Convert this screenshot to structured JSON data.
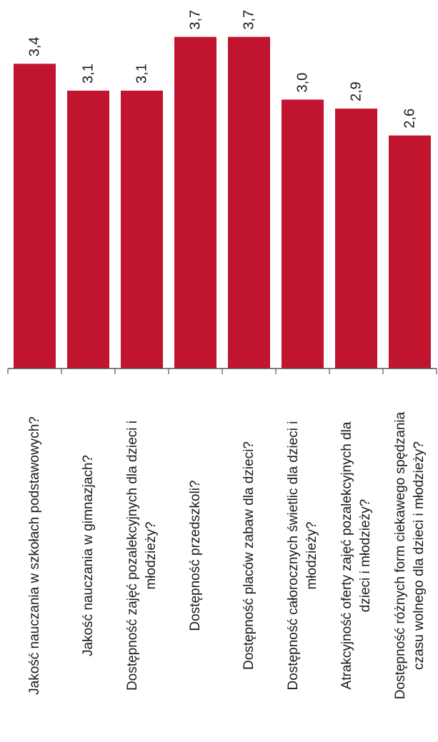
{
  "chart_data": {
    "type": "bar",
    "categories": [
      [
        "Jakość nauczania w szkołach podstawowych?"
      ],
      [
        "Jakość nauczania w gimnazjach?"
      ],
      [
        "Dostępność zajęć pozalekcyjnych dla dzieci i",
        "młodzieży?"
      ],
      [
        "Dostępność przedszkoli?"
      ],
      [
        "Dostępność placów zabaw dla dzieci?"
      ],
      [
        "Dostępność całorocznych świetlic dla dzieci i",
        "młodzieży?"
      ],
      [
        "Atrakcyjność oferty zajęć pozalekcyjnych dla",
        "dzieci i młodzieży?"
      ],
      [
        "Dostępność różnych form ciekawego spędzania",
        "czasu wolnego dla dzieci i młodzieży?"
      ]
    ],
    "values": [
      3.4,
      3.1,
      3.1,
      3.7,
      3.7,
      3.0,
      2.9,
      2.6
    ],
    "value_labels": [
      "3,4",
      "3,1",
      "3,1",
      "3,7",
      "3,7",
      "3,0",
      "2,9",
      "2,6"
    ],
    "ylim": [
      0,
      4
    ],
    "grid": false,
    "orientation": "rotated-90",
    "colors": {
      "bar": "#c0142f",
      "axis": "#555555"
    }
  }
}
